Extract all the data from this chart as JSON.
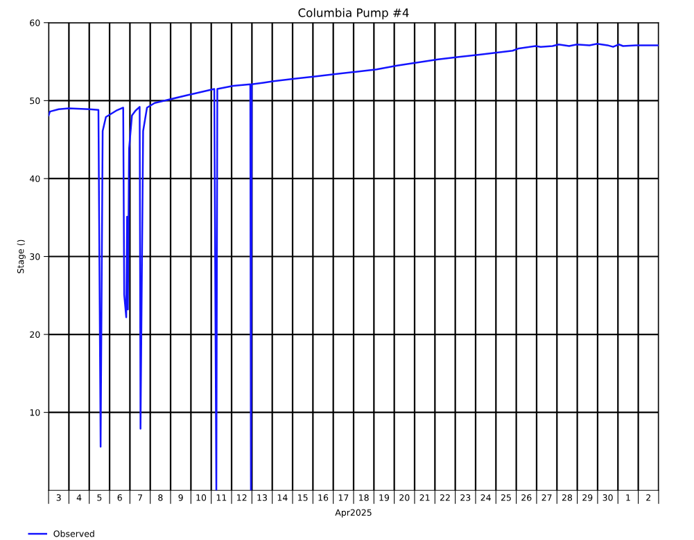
{
  "chart_data": {
    "type": "line",
    "title": "Columbia Pump #4",
    "xlabel": "Apr2025",
    "ylabel": "Stage ()",
    "series": [
      {
        "name": "Observed",
        "color": "#1414ff",
        "x": [
          "2025-04-03T00:00",
          "2025-04-03T01:40",
          "2025-04-03T12:00",
          "2025-04-04T00:00",
          "2025-04-05T00:00",
          "2025-04-05T10:50",
          "2025-04-05T13:25",
          "2025-04-05T15:50",
          "2025-04-05T19:40",
          "2025-04-06T07:40",
          "2025-04-06T16:05",
          "2025-04-06T17:15",
          "2025-04-06T19:40",
          "2025-04-06T20:40",
          "2025-04-06T21:35",
          "2025-04-06T23:00",
          "2025-04-07T02:25",
          "2025-04-07T06:30",
          "2025-04-07T11:30",
          "2025-04-07T12:30",
          "2025-04-07T15:35",
          "2025-04-07T20:10",
          "2025-04-08T05:15",
          "2025-04-08T17:15",
          "2025-04-09T19:40",
          "2025-04-10T03:50",
          "2025-04-11T03:35",
          "2025-04-11T06:00",
          "2025-04-11T07:10",
          "2025-04-12T01:55",
          "2025-04-12T22:05",
          "2025-04-12T22:50",
          "2025-04-12T23:45",
          "2025-04-13T13:40",
          "2025-04-14T01:40",
          "2025-04-15T01:55",
          "2025-04-16T02:10",
          "2025-04-17T02:25",
          "2025-04-18T02:40",
          "2025-04-19T03:05",
          "2025-04-20T03:20",
          "2025-04-20T15:20",
          "2025-04-21T03:35",
          "2025-04-22T03:50",
          "2025-04-23T04:05",
          "2025-04-24T04:20",
          "2025-04-25T04:20",
          "2025-04-25T19:40",
          "2025-04-26T03:05",
          "2025-04-26T22:50",
          "2025-04-27T04:50",
          "2025-04-27T18:45",
          "2025-04-28T02:10",
          "2025-04-28T14:25",
          "2025-04-28T23:30",
          "2025-04-29T14:25",
          "2025-04-29T23:30",
          "2025-04-30T11:45",
          "2025-04-30T18:15",
          "2025-05-01T01:10",
          "2025-05-01T06:00",
          "2025-05-01T21:05",
          "2025-05-02T06:00",
          "2025-05-03T00:00"
        ],
        "values": [
          48.1,
          48.6,
          48.9,
          49.0,
          48.9,
          48.8,
          5.6,
          46.1,
          47.9,
          48.7,
          49.1,
          25.1,
          22.2,
          35.1,
          23.2,
          43.8,
          48.1,
          48.7,
          49.2,
          7.9,
          46.1,
          49.1,
          49.7,
          50.0,
          50.7,
          50.9,
          51.5,
          0,
          51.5,
          51.9,
          52.1,
          0,
          52.1,
          52.3,
          52.5,
          52.8,
          53.1,
          53.4,
          53.7,
          54.0,
          54.5,
          54.7,
          54.9,
          55.3,
          55.6,
          55.9,
          56.2,
          56.4,
          56.7,
          57.0,
          56.9,
          57.0,
          57.2,
          57.0,
          57.2,
          57.1,
          57.3,
          57.1,
          56.9,
          57.2,
          57.0,
          57.1,
          57.1,
          57.1
        ]
      }
    ],
    "xlim": [
      "2025-04-03",
      "2025-05-03"
    ],
    "xticks": [
      {
        "value": "2025-04-03",
        "label": null
      },
      {
        "value": "2025-04-03T12:00",
        "label": "3"
      },
      {
        "value": "2025-04-04",
        "label": null
      },
      {
        "value": "2025-04-04T12:00",
        "label": "4"
      },
      {
        "value": "2025-04-05",
        "label": null
      },
      {
        "value": "2025-04-05T12:00",
        "label": "5"
      },
      {
        "value": "2025-04-06",
        "label": null
      },
      {
        "value": "2025-04-06T12:00",
        "label": "6"
      },
      {
        "value": "2025-04-07",
        "label": null
      },
      {
        "value": "2025-04-07T12:00",
        "label": "7"
      },
      {
        "value": "2025-04-08",
        "label": null
      },
      {
        "value": "2025-04-08T12:00",
        "label": "8"
      },
      {
        "value": "2025-04-09",
        "label": null
      },
      {
        "value": "2025-04-09T12:00",
        "label": "9"
      },
      {
        "value": "2025-04-10",
        "label": null
      },
      {
        "value": "2025-04-10T12:00",
        "label": "10"
      },
      {
        "value": "2025-04-11",
        "label": null
      },
      {
        "value": "2025-04-11T12:00",
        "label": "11"
      },
      {
        "value": "2025-04-12",
        "label": null
      },
      {
        "value": "2025-04-12T12:00",
        "label": "12"
      },
      {
        "value": "2025-04-13",
        "label": null
      },
      {
        "value": "2025-04-13T12:00",
        "label": "13"
      },
      {
        "value": "2025-04-14",
        "label": null
      },
      {
        "value": "2025-04-14T12:00",
        "label": "14"
      },
      {
        "value": "2025-04-15",
        "label": null
      },
      {
        "value": "2025-04-15T12:00",
        "label": "15"
      },
      {
        "value": "2025-04-16",
        "label": null
      },
      {
        "value": "2025-04-16T12:00",
        "label": "16"
      },
      {
        "value": "2025-04-17",
        "label": null
      },
      {
        "value": "2025-04-17T12:00",
        "label": "17"
      },
      {
        "value": "2025-04-18",
        "label": null
      },
      {
        "value": "2025-04-18T12:00",
        "label": "18"
      },
      {
        "value": "2025-04-19",
        "label": null
      },
      {
        "value": "2025-04-19T12:00",
        "label": "19"
      },
      {
        "value": "2025-04-20",
        "label": null
      },
      {
        "value": "2025-04-20T12:00",
        "label": "20"
      },
      {
        "value": "2025-04-21",
        "label": null
      },
      {
        "value": "2025-04-21T12:00",
        "label": "21"
      },
      {
        "value": "2025-04-22",
        "label": null
      },
      {
        "value": "2025-04-22T12:00",
        "label": "22"
      },
      {
        "value": "2025-04-23",
        "label": null
      },
      {
        "value": "2025-04-23T12:00",
        "label": "23"
      },
      {
        "value": "2025-04-24",
        "label": null
      },
      {
        "value": "2025-04-24T12:00",
        "label": "24"
      },
      {
        "value": "2025-04-25",
        "label": null
      },
      {
        "value": "2025-04-25T12:00",
        "label": "25"
      },
      {
        "value": "2025-04-26",
        "label": null
      },
      {
        "value": "2025-04-26T12:00",
        "label": "26"
      },
      {
        "value": "2025-04-27",
        "label": null
      },
      {
        "value": "2025-04-27T12:00",
        "label": "27"
      },
      {
        "value": "2025-04-28",
        "label": null
      },
      {
        "value": "2025-04-28T12:00",
        "label": "28"
      },
      {
        "value": "2025-04-29",
        "label": null
      },
      {
        "value": "2025-04-29T12:00",
        "label": "29"
      },
      {
        "value": "2025-04-30",
        "label": null
      },
      {
        "value": "2025-04-30T12:00",
        "label": "30"
      },
      {
        "value": "2025-05-01",
        "label": null
      },
      {
        "value": "2025-05-01T12:00",
        "label": "1"
      },
      {
        "value": "2025-05-02",
        "label": null
      },
      {
        "value": "2025-05-02T12:00",
        "label": "2"
      },
      {
        "value": "2025-05-03",
        "label": null
      }
    ],
    "ylim": [
      0,
      60
    ],
    "yticks": [
      10,
      20,
      30,
      40,
      50,
      60
    ],
    "grid": true,
    "legend": "bottom left",
    "marker": "none",
    "line_style": "solid"
  }
}
